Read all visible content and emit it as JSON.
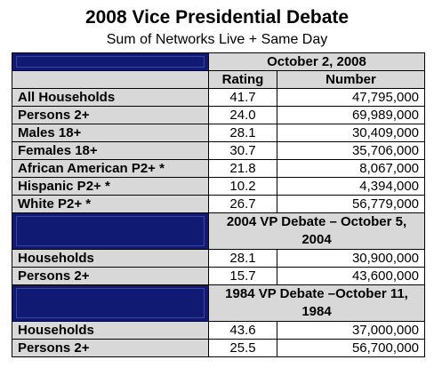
{
  "chart_data": {
    "type": "table",
    "title": "2008 Vice Presidential Debate",
    "subtitle": "Sum of Networks Live + Same Day",
    "sections": [
      {
        "header": "October 2, 2008",
        "columns": [
          "Rating",
          "Number"
        ],
        "rows": [
          {
            "label": "All Households",
            "rating": "41.7",
            "number": "47,795,000"
          },
          {
            "label": "Persons 2+",
            "rating": "24.0",
            "number": "69,989,000"
          },
          {
            "label": "Males 18+",
            "rating": "28.1",
            "number": "30,409,000"
          },
          {
            "label": "Females 18+",
            "rating": "30.7",
            "number": "35,706,000"
          },
          {
            "label": "African American P2+ *",
            "rating": "21.8",
            "number": "8,067,000"
          },
          {
            "label": "Hispanic P2+ *",
            "rating": "10.2",
            "number": "4,394,000"
          },
          {
            "label": "White P2+ *",
            "rating": "26.7",
            "number": "56,779,000"
          }
        ]
      },
      {
        "header": "2004 VP Debate – October 5, 2004",
        "rows": [
          {
            "label": "Households",
            "rating": "28.1",
            "number": "30,900,000"
          },
          {
            "label": "Persons 2+",
            "rating": "15.7",
            "number": "43,600,000"
          }
        ]
      },
      {
        "header": "1984 VP Debate –October 11, 1984",
        "rows": [
          {
            "label": "Households",
            "rating": "43.6",
            "number": "37,000,000"
          },
          {
            "label": "Persons 2+",
            "rating": "25.5",
            "number": "56,700,000"
          }
        ]
      }
    ],
    "colors": {
      "header_fill": "#101a73",
      "label_fill": "#d8d8d8"
    }
  }
}
